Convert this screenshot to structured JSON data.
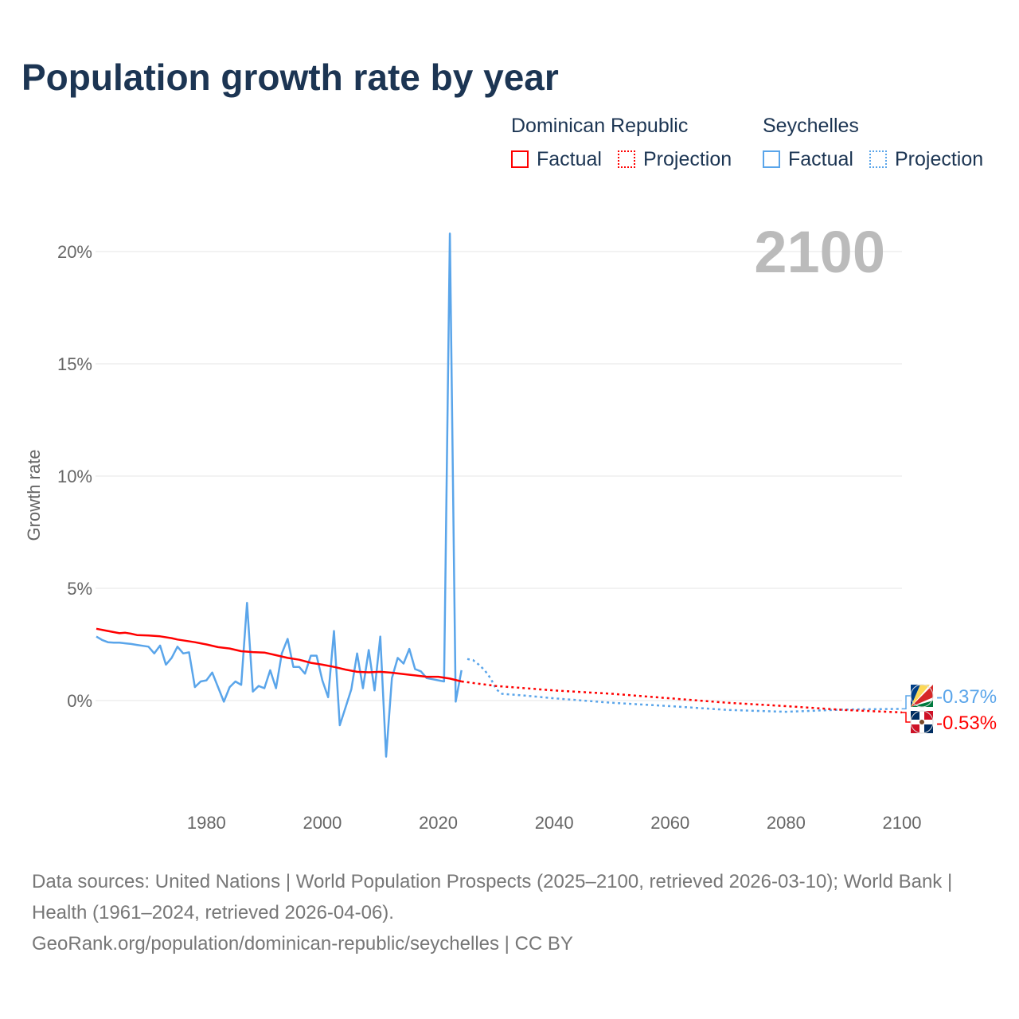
{
  "chart_data": {
    "type": "line",
    "title": "Population growth rate by year",
    "ylabel": "Growth rate",
    "xlabel": "",
    "xlim": [
      1961,
      2100
    ],
    "ylim": [
      -3,
      22
    ],
    "yticks": [
      0,
      5,
      10,
      15,
      20
    ],
    "ytick_labels": [
      "0%",
      "5%",
      "10%",
      "15%",
      "20%"
    ],
    "xticks": [
      1980,
      2000,
      2020,
      2040,
      2060,
      2080,
      2100
    ],
    "xtick_labels": [
      "1980",
      "2000",
      "2020",
      "2040",
      "2060",
      "2080",
      "2100"
    ],
    "grid": true,
    "year_overlay": "2100",
    "legend": {
      "placement": "top-right",
      "groups": [
        {
          "name": "Dominican Republic",
          "factual": "Factual",
          "projection": "Projection",
          "color": "#ff0000"
        },
        {
          "name": "Seychelles",
          "factual": "Factual",
          "projection": "Projection",
          "color": "#5aa5ea"
        }
      ]
    },
    "series": [
      {
        "name": "Dominican Republic",
        "color": "#ff0000",
        "end_label": "-0.53%",
        "factual": [
          [
            1961,
            3.2
          ],
          [
            1963,
            3.1
          ],
          [
            1965,
            3.0
          ],
          [
            1966,
            3.02
          ],
          [
            1967,
            2.98
          ],
          [
            1968,
            2.92
          ],
          [
            1970,
            2.9
          ],
          [
            1972,
            2.86
          ],
          [
            1974,
            2.78
          ],
          [
            1975,
            2.72
          ],
          [
            1978,
            2.6
          ],
          [
            1980,
            2.5
          ],
          [
            1982,
            2.38
          ],
          [
            1984,
            2.32
          ],
          [
            1986,
            2.2
          ],
          [
            1988,
            2.16
          ],
          [
            1990,
            2.14
          ],
          [
            1992,
            2.02
          ],
          [
            1994,
            1.9
          ],
          [
            1996,
            1.82
          ],
          [
            1998,
            1.68
          ],
          [
            2000,
            1.6
          ],
          [
            2002,
            1.5
          ],
          [
            2004,
            1.38
          ],
          [
            2006,
            1.28
          ],
          [
            2008,
            1.26
          ],
          [
            2010,
            1.28
          ],
          [
            2012,
            1.24
          ],
          [
            2014,
            1.18
          ],
          [
            2016,
            1.12
          ],
          [
            2018,
            1.06
          ],
          [
            2020,
            1.06
          ],
          [
            2022,
            0.98
          ],
          [
            2024,
            0.85
          ]
        ],
        "projection": [
          [
            2024,
            0.85
          ],
          [
            2030,
            0.65
          ],
          [
            2040,
            0.45
          ],
          [
            2050,
            0.3
          ],
          [
            2060,
            0.1
          ],
          [
            2070,
            -0.1
          ],
          [
            2080,
            -0.25
          ],
          [
            2090,
            -0.42
          ],
          [
            2100,
            -0.53
          ]
        ]
      },
      {
        "name": "Seychelles",
        "color": "#5aa5ea",
        "end_label": "-0.37%",
        "factual": [
          [
            1961,
            2.85
          ],
          [
            1962,
            2.7
          ],
          [
            1963,
            2.6
          ],
          [
            1964,
            2.58
          ],
          [
            1965,
            2.58
          ],
          [
            1966,
            2.55
          ],
          [
            1967,
            2.52
          ],
          [
            1968,
            2.48
          ],
          [
            1969,
            2.44
          ],
          [
            1970,
            2.4
          ],
          [
            1971,
            2.1
          ],
          [
            1972,
            2.45
          ],
          [
            1973,
            1.6
          ],
          [
            1974,
            1.9
          ],
          [
            1975,
            2.4
          ],
          [
            1976,
            2.1
          ],
          [
            1977,
            2.15
          ],
          [
            1978,
            0.6
          ],
          [
            1979,
            0.85
          ],
          [
            1980,
            0.9
          ],
          [
            1981,
            1.25
          ],
          [
            1982,
            0.6
          ],
          [
            1983,
            -0.05
          ],
          [
            1984,
            0.6
          ],
          [
            1985,
            0.85
          ],
          [
            1986,
            0.7
          ],
          [
            1987,
            4.35
          ],
          [
            1988,
            0.4
          ],
          [
            1989,
            0.65
          ],
          [
            1990,
            0.55
          ],
          [
            1991,
            1.35
          ],
          [
            1992,
            0.55
          ],
          [
            1993,
            2.1
          ],
          [
            1994,
            2.75
          ],
          [
            1995,
            1.5
          ],
          [
            1996,
            1.5
          ],
          [
            1997,
            1.2
          ],
          [
            1998,
            2.0
          ],
          [
            1999,
            2.0
          ],
          [
            2000,
            0.9
          ],
          [
            2001,
            0.15
          ],
          [
            2002,
            3.1
          ],
          [
            2003,
            -1.1
          ],
          [
            2004,
            -0.3
          ],
          [
            2005,
            0.5
          ],
          [
            2006,
            2.1
          ],
          [
            2007,
            0.55
          ],
          [
            2008,
            2.25
          ],
          [
            2009,
            0.45
          ],
          [
            2010,
            2.85
          ],
          [
            2011,
            -2.5
          ],
          [
            2012,
            1.0
          ],
          [
            2013,
            1.9
          ],
          [
            2014,
            1.65
          ],
          [
            2015,
            2.3
          ],
          [
            2016,
            1.4
          ],
          [
            2017,
            1.3
          ],
          [
            2018,
            1.0
          ],
          [
            2019,
            0.95
          ],
          [
            2020,
            0.9
          ],
          [
            2021,
            0.85
          ],
          [
            2022,
            20.8
          ],
          [
            2023,
            -0.05
          ],
          [
            2024,
            1.35
          ]
        ],
        "projection": [
          [
            2025,
            1.85
          ],
          [
            2026,
            1.8
          ],
          [
            2027,
            1.6
          ],
          [
            2028,
            1.35
          ],
          [
            2029,
            1.0
          ],
          [
            2030,
            0.5
          ],
          [
            2031,
            0.3
          ],
          [
            2035,
            0.22
          ],
          [
            2040,
            0.1
          ],
          [
            2050,
            -0.1
          ],
          [
            2060,
            -0.25
          ],
          [
            2070,
            -0.42
          ],
          [
            2080,
            -0.5
          ],
          [
            2090,
            -0.4
          ],
          [
            2100,
            -0.37
          ]
        ]
      }
    ]
  },
  "footer": {
    "sources": "Data sources: United Nations | World Population Prospects (2025–2100, retrieved 2026-03-10); World Bank | Health (1961–2024, retrieved 2026-04-06).",
    "link": "GeoRank.org/population/dominican-republic/seychelles | CC BY"
  }
}
